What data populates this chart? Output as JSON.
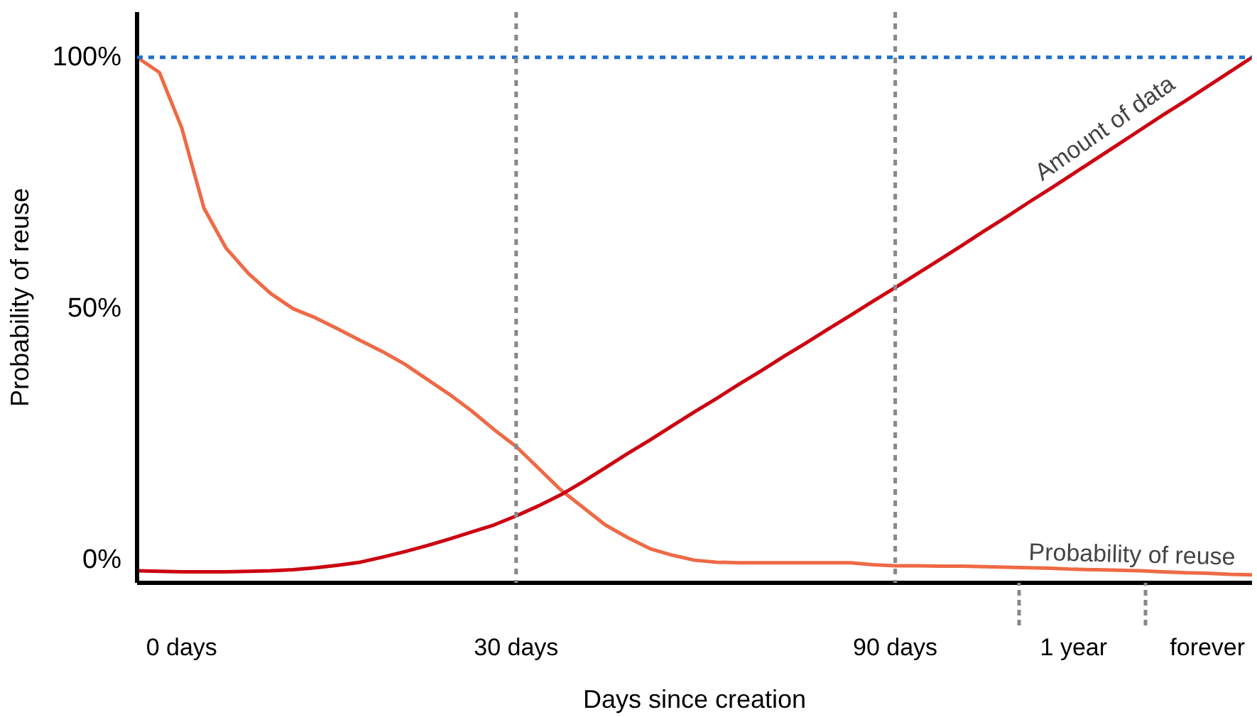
{
  "chart_data": {
    "type": "line",
    "xlabel": "Days since creation",
    "ylabel": "Probability of reuse",
    "categories": [
      null,
      null,
      "0 days",
      null,
      null,
      null,
      null,
      null,
      null,
      null,
      null,
      null,
      null,
      null,
      null,
      null,
      null,
      "30 days",
      null,
      null,
      null,
      null,
      null,
      null,
      null,
      null,
      null,
      null,
      null,
      null,
      null,
      null,
      null,
      null,
      "90 days",
      null,
      null,
      null,
      null,
      null,
      null,
      null,
      "1 year",
      null,
      null,
      null,
      null,
      null,
      "forever",
      null,
      null
    ],
    "ylim": [
      -4.5,
      109
    ],
    "yticks": [
      {
        "value": 0,
        "label": "0%"
      },
      {
        "value": 50,
        "label": "50%"
      },
      {
        "value": 100,
        "label": "100%"
      }
    ],
    "line_style": "solid",
    "series": [
      {
        "name": "Probability of reuse",
        "color": "#ee6a45",
        "values": [
          100,
          97,
          86,
          70,
          62,
          57,
          53,
          50,
          48.2,
          46,
          43.7,
          41.5,
          39,
          36,
          33,
          29.7,
          26,
          22.6,
          18.3,
          14,
          10.5,
          7,
          4.5,
          2.3,
          1,
          0,
          -0.4,
          -0.5,
          -0.5,
          -0.5,
          -0.5,
          -0.5,
          -0.5,
          -0.9,
          -1.1,
          -1.1,
          -1.2,
          -1.2,
          -1.3,
          -1.4,
          -1.5,
          -1.6,
          -1.8,
          -1.9,
          -2,
          -2.1,
          -2.3,
          -2.5,
          -2.6,
          -2.8,
          -2.9
        ]
      },
      {
        "name": "Amount of data",
        "color": "#cc0011",
        "values": [
          -2.1,
          -2.2,
          -2.3,
          -2.3,
          -2.3,
          -2.2,
          -2.1,
          -1.9,
          -1.5,
          -1,
          -0.4,
          0.6,
          1.7,
          2.9,
          4.2,
          5.6,
          7,
          8.8,
          10.8,
          13,
          15.6,
          18.4,
          21.2,
          23.9,
          26.7,
          29.5,
          32.2,
          35,
          37.7,
          40.5,
          43.2,
          46,
          48.7,
          51.5,
          54.2,
          57,
          59.8,
          62.6,
          65.5,
          68.3,
          71.2,
          74,
          76.9,
          79.8,
          82.7,
          85.6,
          88.5,
          91.3,
          94.2,
          97.1,
          100
        ]
      }
    ],
    "ref_lines": [
      {
        "axis": "y",
        "value": 100,
        "color": "#1f6fd0",
        "line_style": "dashed"
      },
      {
        "axis": "x",
        "value": "30 days",
        "color": "#888888",
        "line_style": "dashed"
      },
      {
        "axis": "x",
        "value": "90 days",
        "color": "#888888",
        "line_style": "dashed"
      }
    ]
  }
}
